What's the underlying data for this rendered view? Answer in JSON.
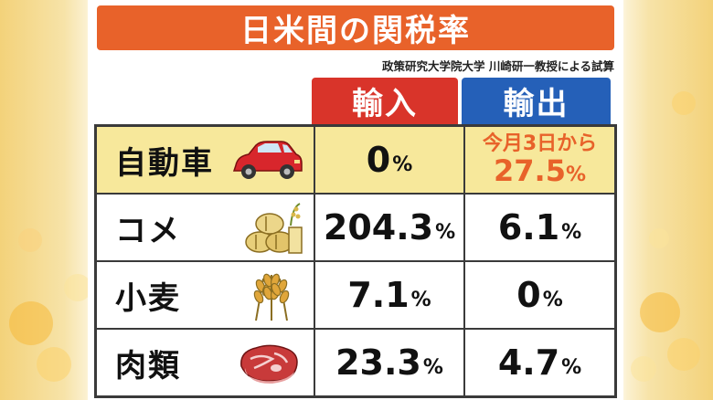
{
  "title": "日米間の関税率",
  "source": "政策研究大学院大学 川崎研一教授による試算",
  "headers": {
    "import": "輸入",
    "export": "輸出"
  },
  "percent_sign": "%",
  "rows": [
    {
      "label": "自動車",
      "icon": "car-icon",
      "import": "0",
      "export_note_small": "今月3日から",
      "export_note_big": "27.5"
    },
    {
      "label": "コメ",
      "icon": "rice-bales-icon",
      "import": "204.3",
      "export": "6.1"
    },
    {
      "label": "小麦",
      "icon": "wheat-icon",
      "import": "7.1",
      "export": "0"
    },
    {
      "label": "肉類",
      "icon": "meat-icon",
      "import": "23.3",
      "export": "4.7"
    }
  ],
  "colors": {
    "title_bg": "#e8622a",
    "import_bg": "#d9342a",
    "export_bg": "#2560b8",
    "car_row_bg": "#f7e89b",
    "highlight_text": "#e8622a"
  }
}
